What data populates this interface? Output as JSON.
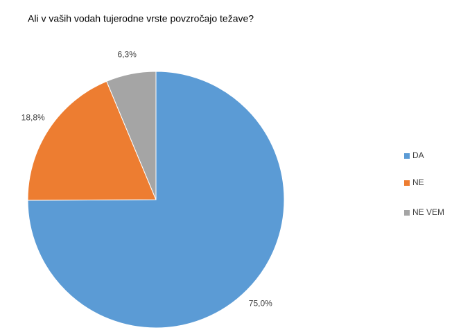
{
  "chart_data": {
    "type": "pie",
    "title": "Ali v vaših vodah tujerodne vrste povzročajo težave?",
    "categories": [
      "DA",
      "NE",
      "NE VEM"
    ],
    "values": [
      75.0,
      18.8,
      6.3
    ],
    "value_labels": [
      "75,0%",
      "18,8%",
      "6,3%"
    ],
    "colors": [
      "#5b9bd5",
      "#ed7d31",
      "#a5a5a5"
    ],
    "legend": "right"
  }
}
